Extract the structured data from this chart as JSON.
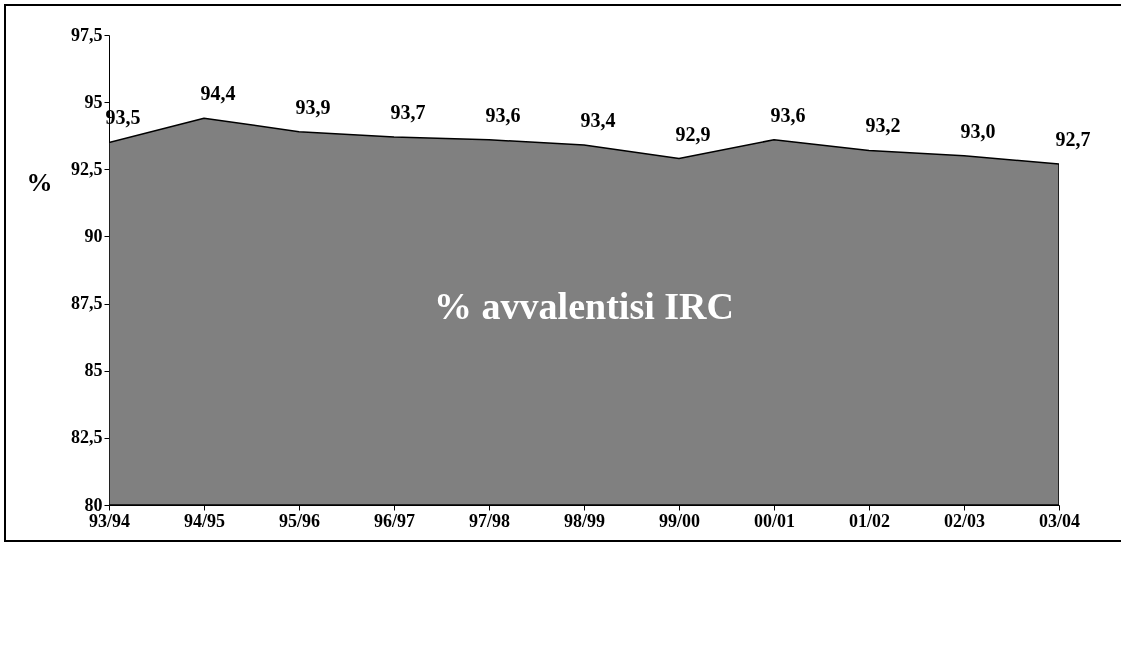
{
  "chart_data": {
    "type": "area",
    "ylabel": "%",
    "categories": [
      "93/94",
      "94/95",
      "95/96",
      "96/97",
      "97/98",
      "98/99",
      "99/00",
      "00/01",
      "01/02",
      "02/03",
      "03/04"
    ],
    "values": [
      93.5,
      94.4,
      93.9,
      93.7,
      93.6,
      93.4,
      92.9,
      93.6,
      93.2,
      93.0,
      92.7
    ],
    "value_labels": [
      "93,5",
      "94,4",
      "93,9",
      "93,7",
      "93,6",
      "93,4",
      "92,9",
      "93,6",
      "93,2",
      "93,0",
      "92,7"
    ],
    "color": "#808080",
    "ylim": [
      80,
      97.5
    ],
    "yticks": [
      80,
      {
        "value": 82.5,
        "label": "82,5"
      },
      85,
      {
        "value": 87.5,
        "label": "87,5"
      },
      90,
      {
        "value": 92.5,
        "label": "92,5"
      },
      95,
      {
        "value": 97.5,
        "label": "97,5"
      }
    ],
    "annotations": [
      "% avvalentisi IRC"
    ],
    "grid": false
  }
}
